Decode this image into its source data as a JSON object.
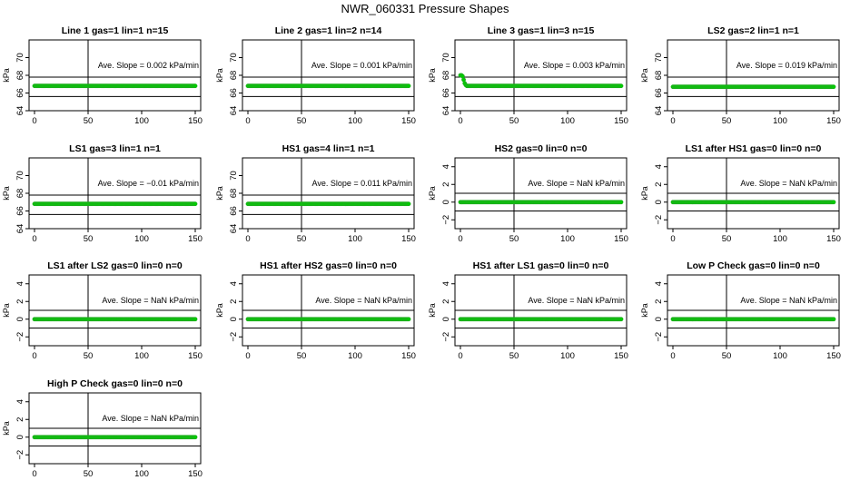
{
  "figure": {
    "title": "NWR_060331  Pressure Shapes",
    "marker_color": "#00cc00",
    "marker_edge": "#22aa22"
  },
  "chart_data": [
    {
      "type": "scatter",
      "title": "Line 1 gas=1 lin=1 n=15",
      "ylabel": "kPa",
      "xlim": [
        0,
        150
      ],
      "xticks": [
        0,
        50,
        100,
        150
      ],
      "ylim": [
        64,
        72
      ],
      "yticks": [
        64,
        66,
        68,
        70
      ],
      "hlines": [
        65.6,
        67.8
      ],
      "vline": 50,
      "annotation": "Ave. Slope =  0.002  kPa/min",
      "x_range": [
        0,
        150
      ],
      "y_base": 66.8,
      "excursion": null
    },
    {
      "type": "scatter",
      "title": "Line 2 gas=1 lin=2 n=14",
      "ylabel": "kPa",
      "xlim": [
        0,
        150
      ],
      "xticks": [
        0,
        50,
        100,
        150
      ],
      "ylim": [
        64,
        72
      ],
      "yticks": [
        64,
        66,
        68,
        70
      ],
      "hlines": [
        65.6,
        67.8
      ],
      "vline": 50,
      "annotation": "Ave. Slope =  0.001  kPa/min",
      "x_range": [
        0,
        150
      ],
      "y_base": 66.8,
      "excursion": null
    },
    {
      "type": "scatter",
      "title": "Line 3 gas=1 lin=3 n=15",
      "ylabel": "kPa",
      "xlim": [
        0,
        150
      ],
      "xticks": [
        0,
        50,
        100,
        150
      ],
      "ylim": [
        64,
        72
      ],
      "yticks": [
        64,
        66,
        68,
        70
      ],
      "hlines": [
        65.6,
        67.8
      ],
      "vline": 50,
      "annotation": "Ave. Slope =  0.003  kPa/min",
      "x_range": [
        0,
        150
      ],
      "y_base": 66.8,
      "excursion": [
        [
          0,
          68.0
        ],
        [
          1,
          68.0
        ],
        [
          2,
          67.9
        ],
        [
          3,
          67.5
        ],
        [
          4,
          67.1
        ],
        [
          5,
          66.9
        ]
      ]
    },
    {
      "type": "scatter",
      "title": "LS2 gas=2 lin=1 n=1",
      "ylabel": "kPa",
      "xlim": [
        0,
        150
      ],
      "xticks": [
        0,
        50,
        100,
        150
      ],
      "ylim": [
        64,
        72
      ],
      "yticks": [
        64,
        66,
        68,
        70
      ],
      "hlines": [
        65.6,
        67.8
      ],
      "vline": 50,
      "annotation": "Ave. Slope =  0.019  kPa/min",
      "x_range": [
        0,
        150
      ],
      "y_base": 66.7,
      "excursion": null
    },
    {
      "type": "scatter",
      "title": "LS1 gas=3 lin=1 n=1",
      "ylabel": "kPa",
      "xlim": [
        0,
        150
      ],
      "xticks": [
        0,
        50,
        100,
        150
      ],
      "ylim": [
        64,
        72
      ],
      "yticks": [
        64,
        66,
        68,
        70
      ],
      "hlines": [
        65.6,
        67.8
      ],
      "vline": 50,
      "annotation": "Ave. Slope =  −0.01  kPa/min",
      "x_range": [
        0,
        150
      ],
      "y_base": 66.8,
      "excursion": null
    },
    {
      "type": "scatter",
      "title": "HS1 gas=4 lin=1 n=1",
      "ylabel": "kPa",
      "xlim": [
        0,
        150
      ],
      "xticks": [
        0,
        50,
        100,
        150
      ],
      "ylim": [
        64,
        72
      ],
      "yticks": [
        64,
        66,
        68,
        70
      ],
      "hlines": [
        65.6,
        67.8
      ],
      "vline": 50,
      "annotation": "Ave. Slope =  0.011  kPa/min",
      "x_range": [
        0,
        150
      ],
      "y_base": 66.8,
      "excursion": null
    },
    {
      "type": "scatter",
      "title": "HS2 gas=0 lin=0 n=0",
      "ylabel": "kPa",
      "xlim": [
        0,
        150
      ],
      "xticks": [
        0,
        50,
        100,
        150
      ],
      "ylim": [
        -3,
        5
      ],
      "yticks": [
        -2,
        0,
        2,
        4
      ],
      "hlines": [
        -1,
        1
      ],
      "vline": 50,
      "annotation": "Ave. Slope =  NaN  kPa/min",
      "x_range": [
        0,
        150
      ],
      "y_base": 0,
      "excursion": null
    },
    {
      "type": "scatter",
      "title": "LS1 after HS1 gas=0 lin=0 n=0",
      "ylabel": "kPa",
      "xlim": [
        0,
        150
      ],
      "xticks": [
        0,
        50,
        100,
        150
      ],
      "ylim": [
        -3,
        5
      ],
      "yticks": [
        -2,
        0,
        2,
        4
      ],
      "hlines": [
        -1,
        1
      ],
      "vline": 50,
      "annotation": "Ave. Slope =  NaN  kPa/min",
      "x_range": [
        0,
        150
      ],
      "y_base": 0,
      "excursion": null
    },
    {
      "type": "scatter",
      "title": "LS1 after LS2 gas=0 lin=0 n=0",
      "ylabel": "kPa",
      "xlim": [
        0,
        150
      ],
      "xticks": [
        0,
        50,
        100,
        150
      ],
      "ylim": [
        -3,
        5
      ],
      "yticks": [
        -2,
        0,
        2,
        4
      ],
      "hlines": [
        -1,
        1
      ],
      "vline": 50,
      "annotation": "Ave. Slope =  NaN  kPa/min",
      "x_range": [
        0,
        150
      ],
      "y_base": 0,
      "excursion": null
    },
    {
      "type": "scatter",
      "title": "HS1 after HS2 gas=0 lin=0 n=0",
      "ylabel": "kPa",
      "xlim": [
        0,
        150
      ],
      "xticks": [
        0,
        50,
        100,
        150
      ],
      "ylim": [
        -3,
        5
      ],
      "yticks": [
        -2,
        0,
        2,
        4
      ],
      "hlines": [
        -1,
        1
      ],
      "vline": 50,
      "annotation": "Ave. Slope =  NaN  kPa/min",
      "x_range": [
        0,
        150
      ],
      "y_base": 0,
      "excursion": null
    },
    {
      "type": "scatter",
      "title": "HS1 after LS1 gas=0 lin=0 n=0",
      "ylabel": "kPa",
      "xlim": [
        0,
        150
      ],
      "xticks": [
        0,
        50,
        100,
        150
      ],
      "ylim": [
        -3,
        5
      ],
      "yticks": [
        -2,
        0,
        2,
        4
      ],
      "hlines": [
        -1,
        1
      ],
      "vline": 50,
      "annotation": "Ave. Slope =  NaN  kPa/min",
      "x_range": [
        0,
        150
      ],
      "y_base": 0,
      "excursion": null
    },
    {
      "type": "scatter",
      "title": "Low P Check gas=0 lin=0 n=0",
      "ylabel": "kPa",
      "xlim": [
        0,
        150
      ],
      "xticks": [
        0,
        50,
        100,
        150
      ],
      "ylim": [
        -3,
        5
      ],
      "yticks": [
        -2,
        0,
        2,
        4
      ],
      "hlines": [
        -1,
        1
      ],
      "vline": 50,
      "annotation": "Ave. Slope =  NaN  kPa/min",
      "x_range": [
        0,
        150
      ],
      "y_base": 0,
      "excursion": null
    },
    {
      "type": "scatter",
      "title": "High P Check gas=0 lin=0 n=0",
      "ylabel": "kPa",
      "xlim": [
        0,
        150
      ],
      "xticks": [
        0,
        50,
        100,
        150
      ],
      "ylim": [
        -3,
        5
      ],
      "yticks": [
        -2,
        0,
        2,
        4
      ],
      "hlines": [
        -1,
        1
      ],
      "vline": 50,
      "annotation": "Ave. Slope =  NaN  kPa/min",
      "x_range": [
        0,
        150
      ],
      "y_base": 0,
      "excursion": null
    }
  ]
}
